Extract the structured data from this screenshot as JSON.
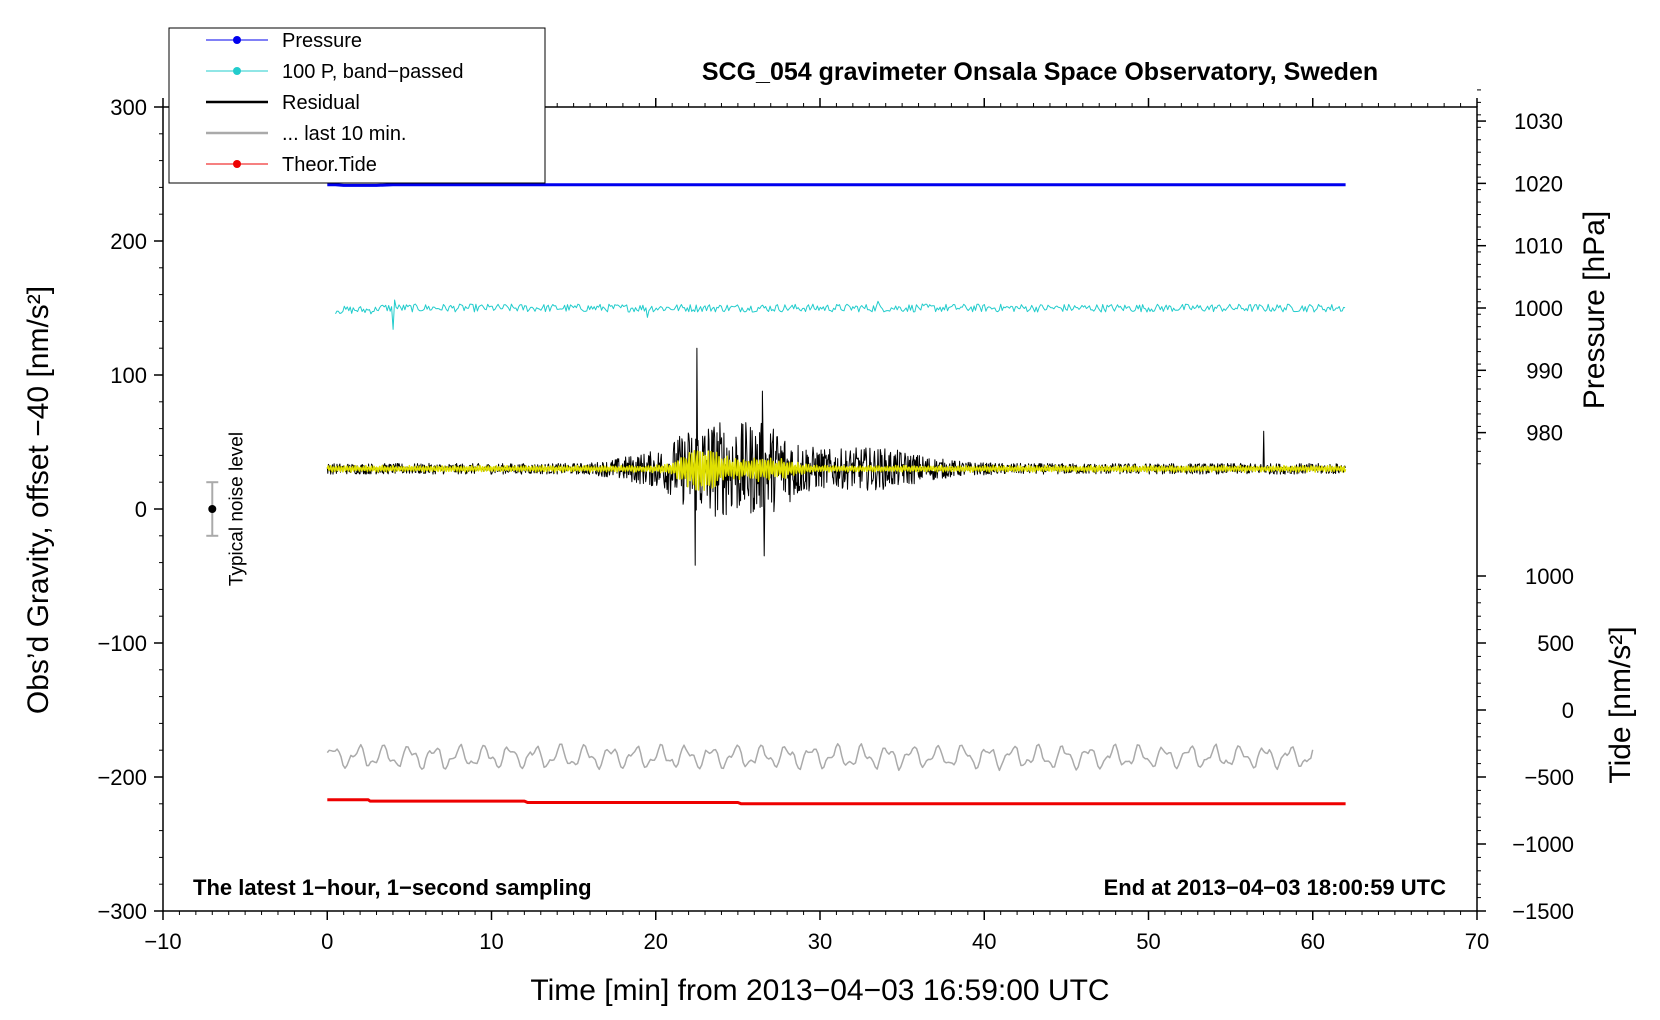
{
  "chart_data": {
    "type": "line",
    "title": "SCG_054 gravimeter Onsala Space Observatory, Sweden",
    "xlabel": "Time [min] from 2013−04−03 16:59:00 UTC",
    "ylabel": "Obs’d Gravity, offset −40 [nm/s²]",
    "xlim": [
      -10,
      70
    ],
    "ylim": [
      -300,
      300
    ],
    "xticks": [
      -10,
      0,
      10,
      20,
      30,
      40,
      50,
      60,
      70
    ],
    "yticks": [
      -300,
      -200,
      -100,
      0,
      100,
      200,
      300
    ],
    "xtick_labels": [
      "−10",
      "0",
      "10",
      "20",
      "30",
      "40",
      "50",
      "60",
      "70"
    ],
    "ytick_labels": [
      "−300",
      "−200",
      "−100",
      "0",
      "100",
      "200",
      "300"
    ],
    "right_axis_pressure": {
      "label": "Pressure [hPa]",
      "ticks": [
        980,
        990,
        1000,
        1010,
        1020,
        1030
      ],
      "tick_labels": [
        "980",
        "990",
        "1000",
        "1010",
        "1020",
        "1030"
      ],
      "gravity_at_1000": 150,
      "gravity_per_hpa": 4.65
    },
    "right_axis_tide": {
      "label": "Tide [nm/s²]",
      "ticks": [
        -1500,
        -1000,
        -500,
        0,
        500,
        1000
      ],
      "tick_labels": [
        "−1500",
        "−1000",
        "−500",
        "0",
        "500",
        "1000"
      ],
      "gravity_at_0": -150,
      "gravity_per_unit": 0.1
    },
    "legend": {
      "position": "top-left",
      "entries": [
        {
          "label": "Pressure",
          "color": "#0000ee",
          "marker": true
        },
        {
          "label": "100 P, band−passed",
          "color": "#22cccc",
          "marker": true
        },
        {
          "label": "Residual",
          "color": "#000000",
          "marker": false
        },
        {
          "label": "... last 10 min.",
          "color": "#aaaaaa",
          "marker": false
        },
        {
          "label": "Theor.Tide",
          "color": "#ee0000",
          "marker": true
        }
      ]
    },
    "series": [
      {
        "name": "Pressure",
        "color": "#0000ee",
        "x": [
          0,
          0.5,
          1,
          2,
          3,
          4,
          10,
          20,
          30,
          40,
          50,
          62
        ],
        "y": [
          242,
          242,
          241.5,
          241.5,
          241.5,
          242,
          242,
          242,
          242,
          242,
          242,
          242
        ]
      },
      {
        "name": "100 P, band-passed",
        "color": "#22cccc",
        "x_range": [
          0.5,
          62
        ],
        "y_mean": 150,
        "y_amp": 3,
        "spikes": [
          {
            "x": 4,
            "y": 134
          },
          {
            "x": 4.1,
            "y": 156
          },
          {
            "x": 19.5,
            "y": 143
          },
          {
            "x": 33.5,
            "y": 155
          }
        ]
      },
      {
        "name": "Residual",
        "color": "#000000",
        "x_range": [
          0,
          62
        ],
        "y_mean": 30,
        "y_amp_base": 4,
        "peaks": [
          {
            "x": 22.5,
            "y": 120
          },
          {
            "x": 22.4,
            "y": -42
          },
          {
            "x": 26.5,
            "y": 88
          },
          {
            "x": 26.6,
            "y": -35
          },
          {
            "x": 57,
            "y": 58
          }
        ]
      },
      {
        "name": "Residual (filtered)",
        "color": "#e0e000",
        "x_range": [
          0,
          62
        ],
        "y_mean": 30,
        "y_amp_base": 2.5,
        "peak": {
          "x": 22.8,
          "y_max": 50,
          "y_min": 7
        }
      },
      {
        "name": "... last 10 min.",
        "color": "#aaaaaa",
        "x_range": [
          0,
          60
        ],
        "y_mean": -185,
        "y_amp": 9,
        "y_max": -173,
        "y_min": -197
      },
      {
        "name": "Theor.Tide",
        "color": "#ee0000",
        "x": [
          0,
          2.5,
          2.6,
          12,
          12.2,
          25,
          25.2,
          62
        ],
        "y": [
          -217,
          -217,
          -218,
          -218,
          -219,
          -219,
          -220,
          -220
        ]
      }
    ],
    "noise_bar": {
      "label": "Typical noise level",
      "x": -7,
      "y": 0,
      "y_min": -20,
      "y_max": 20
    },
    "footer_left": "The latest 1−hour, 1−second sampling",
    "footer_right": "End at 2013−04−03 18:00:59 UTC"
  }
}
